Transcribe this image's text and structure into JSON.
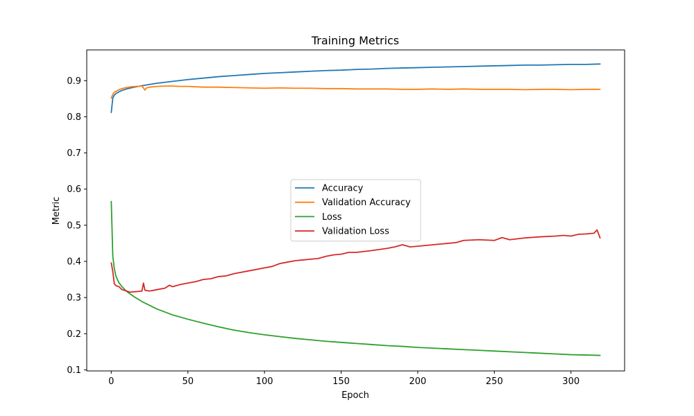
{
  "chart_data": {
    "type": "line",
    "title": "Training Metrics",
    "xlabel": "Epoch",
    "ylabel": "Metric",
    "xlim": [
      -16,
      335
    ],
    "ylim": [
      0.097,
      0.985
    ],
    "xticks": [
      0,
      50,
      100,
      150,
      200,
      250,
      300
    ],
    "xtick_labels": [
      "0",
      "50",
      "100",
      "150",
      "200",
      "250",
      "300"
    ],
    "yticks": [
      0.1,
      0.2,
      0.3,
      0.4,
      0.5,
      0.6,
      0.7,
      0.8,
      0.9
    ],
    "ytick_labels": [
      "0.1",
      "0.2",
      "0.3",
      "0.4",
      "0.5",
      "0.6",
      "0.7",
      "0.8",
      "0.9"
    ],
    "grid": false,
    "legend_position": "center",
    "series": [
      {
        "name": "Accuracy",
        "color": "#1f77b4",
        "x": [
          0,
          1,
          2,
          3,
          5,
          7,
          10,
          15,
          20,
          30,
          40,
          50,
          60,
          70,
          80,
          90,
          100,
          110,
          120,
          130,
          140,
          150,
          160,
          170,
          180,
          190,
          200,
          210,
          220,
          230,
          240,
          250,
          260,
          270,
          280,
          290,
          300,
          310,
          319
        ],
        "y": [
          0.812,
          0.852,
          0.86,
          0.864,
          0.869,
          0.873,
          0.877,
          0.882,
          0.886,
          0.893,
          0.898,
          0.903,
          0.907,
          0.911,
          0.914,
          0.917,
          0.92,
          0.922,
          0.924,
          0.926,
          0.928,
          0.929,
          0.931,
          0.932,
          0.934,
          0.935,
          0.936,
          0.937,
          0.938,
          0.939,
          0.94,
          0.941,
          0.942,
          0.943,
          0.943,
          0.944,
          0.945,
          0.945,
          0.946
        ]
      },
      {
        "name": "Validation Accuracy",
        "color": "#ff7f0e",
        "x": [
          0,
          1,
          2,
          3,
          5,
          7,
          10,
          13,
          16,
          20,
          21,
          22,
          23,
          25,
          30,
          35,
          40,
          45,
          50,
          55,
          60,
          70,
          80,
          90,
          100,
          110,
          120,
          130,
          140,
          150,
          160,
          170,
          180,
          190,
          200,
          210,
          220,
          230,
          240,
          250,
          260,
          270,
          280,
          290,
          300,
          310,
          319
        ],
        "y": [
          0.852,
          0.862,
          0.868,
          0.87,
          0.875,
          0.878,
          0.881,
          0.883,
          0.884,
          0.885,
          0.88,
          0.874,
          0.88,
          0.882,
          0.884,
          0.885,
          0.885,
          0.884,
          0.884,
          0.883,
          0.882,
          0.882,
          0.881,
          0.88,
          0.879,
          0.88,
          0.879,
          0.879,
          0.878,
          0.878,
          0.877,
          0.877,
          0.877,
          0.876,
          0.876,
          0.877,
          0.876,
          0.877,
          0.876,
          0.876,
          0.876,
          0.875,
          0.876,
          0.876,
          0.875,
          0.876,
          0.876
        ]
      },
      {
        "name": "Loss",
        "color": "#2ca02c",
        "x": [
          0,
          1,
          2,
          3,
          4,
          5,
          7,
          10,
          15,
          20,
          30,
          40,
          50,
          60,
          70,
          80,
          90,
          100,
          110,
          120,
          130,
          140,
          150,
          160,
          170,
          180,
          190,
          200,
          210,
          220,
          230,
          240,
          250,
          260,
          270,
          280,
          290,
          300,
          310,
          319
        ],
        "y": [
          0.566,
          0.415,
          0.38,
          0.36,
          0.35,
          0.341,
          0.33,
          0.317,
          0.302,
          0.289,
          0.268,
          0.252,
          0.24,
          0.229,
          0.219,
          0.21,
          0.203,
          0.197,
          0.192,
          0.187,
          0.183,
          0.179,
          0.176,
          0.173,
          0.17,
          0.167,
          0.165,
          0.162,
          0.16,
          0.158,
          0.156,
          0.154,
          0.152,
          0.15,
          0.148,
          0.146,
          0.144,
          0.142,
          0.141,
          0.14
        ]
      },
      {
        "name": "Validation Loss",
        "color": "#d62728",
        "x": [
          0,
          1,
          2,
          3,
          5,
          7,
          10,
          12,
          15,
          18,
          20,
          21,
          22,
          25,
          30,
          35,
          38,
          40,
          45,
          50,
          55,
          60,
          65,
          70,
          75,
          80,
          90,
          100,
          105,
          110,
          115,
          120,
          125,
          130,
          135,
          140,
          145,
          150,
          155,
          160,
          170,
          180,
          185,
          190,
          195,
          200,
          210,
          220,
          225,
          230,
          240,
          250,
          255,
          260,
          270,
          280,
          290,
          295,
          300,
          305,
          310,
          315,
          317,
          319
        ],
        "y": [
          0.396,
          0.372,
          0.338,
          0.333,
          0.33,
          0.322,
          0.318,
          0.315,
          0.316,
          0.317,
          0.318,
          0.34,
          0.32,
          0.318,
          0.322,
          0.326,
          0.334,
          0.33,
          0.336,
          0.34,
          0.344,
          0.35,
          0.352,
          0.358,
          0.36,
          0.366,
          0.374,
          0.382,
          0.386,
          0.394,
          0.398,
          0.402,
          0.404,
          0.406,
          0.408,
          0.414,
          0.418,
          0.42,
          0.425,
          0.425,
          0.43,
          0.436,
          0.44,
          0.446,
          0.44,
          0.442,
          0.446,
          0.45,
          0.452,
          0.458,
          0.46,
          0.458,
          0.466,
          0.46,
          0.465,
          0.468,
          0.47,
          0.472,
          0.47,
          0.475,
          0.476,
          0.478,
          0.487,
          0.465
        ]
      }
    ]
  }
}
